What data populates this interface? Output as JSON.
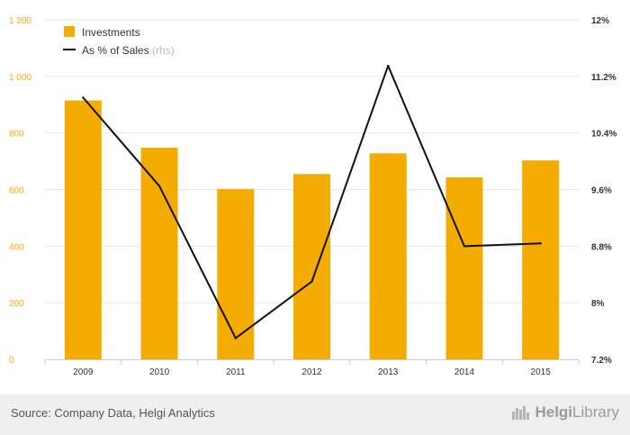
{
  "chart_data": {
    "type": "bar",
    "categories": [
      "2009",
      "2010",
      "2011",
      "2012",
      "2013",
      "2014",
      "2015"
    ],
    "series": [
      {
        "name": "Investments",
        "kind": "bar",
        "axis": "left",
        "color": "#f5ac00",
        "values": [
          915,
          748,
          602,
          655,
          728,
          643,
          703
        ]
      },
      {
        "name": "As % of Sales",
        "kind": "line",
        "axis": "right",
        "color": "#111111",
        "values": [
          10.9,
          9.65,
          7.5,
          8.3,
          11.35,
          8.8,
          8.84
        ]
      }
    ],
    "legend": {
      "items": [
        "Investments",
        "As % of Sales"
      ],
      "rhs_note": "(rhs)",
      "position": "top-left"
    },
    "yleft": {
      "lim": [
        0,
        1200
      ],
      "ticks": [
        0,
        200,
        400,
        600,
        800,
        1000,
        1200
      ],
      "tick_labels": [
        "0",
        "200",
        "400",
        "600",
        "800",
        "1 000",
        "1 200"
      ],
      "color": "#f5ac00"
    },
    "yright": {
      "lim": [
        7.2,
        12
      ],
      "ticks": [
        7.2,
        8,
        8.8,
        9.6,
        10.4,
        11.2,
        12
      ],
      "tick_labels": [
        "7.2%",
        "8%",
        "8.8%",
        "9.6%",
        "10.4%",
        "11.2%",
        "12%"
      ]
    },
    "grid": true
  },
  "footer": {
    "source": "Source: Company Data, Helgi Analytics",
    "brand_bold": "Helgi",
    "brand_light": "Library",
    "brand_icon": "helgi-library-logo-icon"
  }
}
